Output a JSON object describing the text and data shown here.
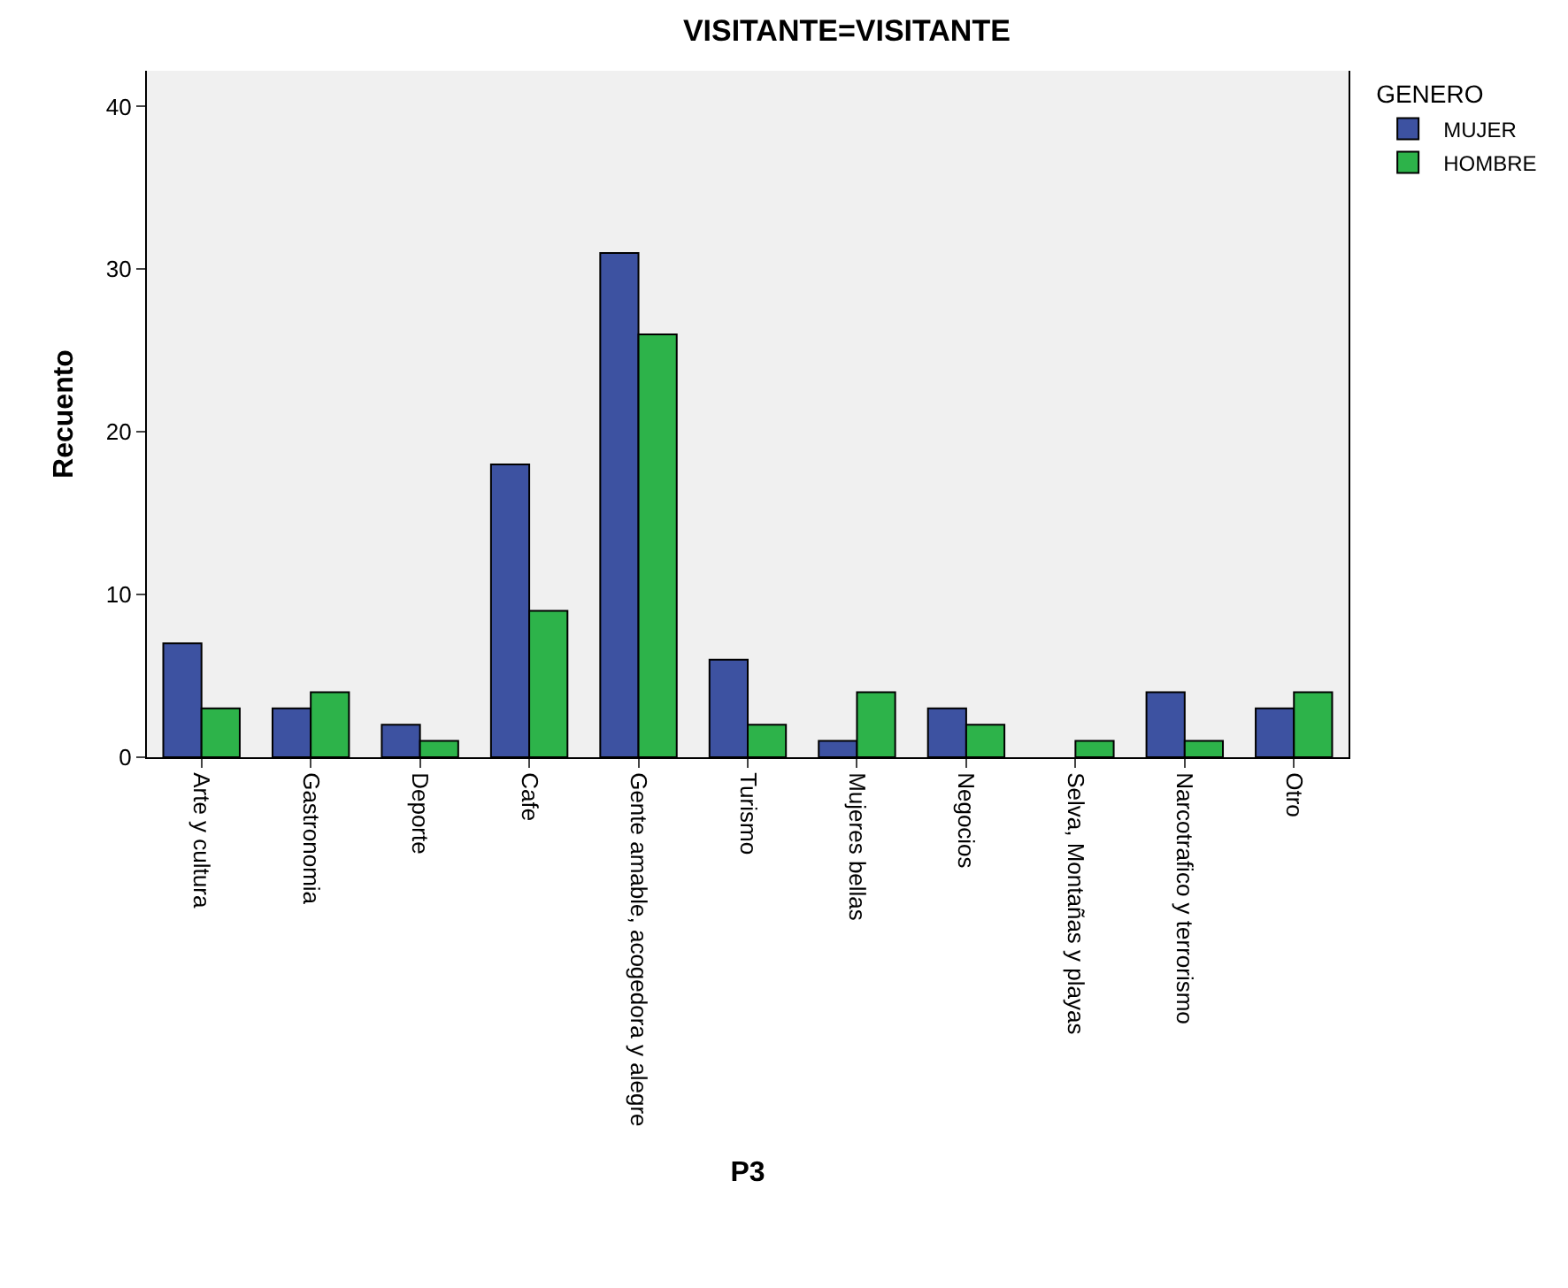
{
  "chart_data": {
    "type": "bar",
    "title": "VISITANTE=VISITANTE",
    "xlabel": "P3",
    "ylabel": "Recuento",
    "legend_title": "GENERO",
    "categories": [
      "Arte y cultura",
      "Gastronomia",
      "Deporte",
      "Cafe",
      "Gente amable, acogedora y alegre",
      "Turismo",
      "Mujeres bellas",
      "Negocios",
      "Selva, Montañas y playas",
      "Narcotrafico y terrorismo",
      "Otro"
    ],
    "series": [
      {
        "name": "MUJER",
        "color": "#3d52a1",
        "values": [
          7,
          3,
          2,
          18,
          31,
          6,
          1,
          3,
          0,
          4,
          3
        ]
      },
      {
        "name": "HOMBRE",
        "color": "#2db34a",
        "values": [
          3,
          4,
          1,
          9,
          26,
          2,
          4,
          2,
          1,
          1,
          4
        ]
      }
    ],
    "ylim": [
      0,
      42.2
    ],
    "yticks": [
      0,
      10,
      20,
      30,
      40
    ],
    "grid": false,
    "legend": "top right"
  }
}
